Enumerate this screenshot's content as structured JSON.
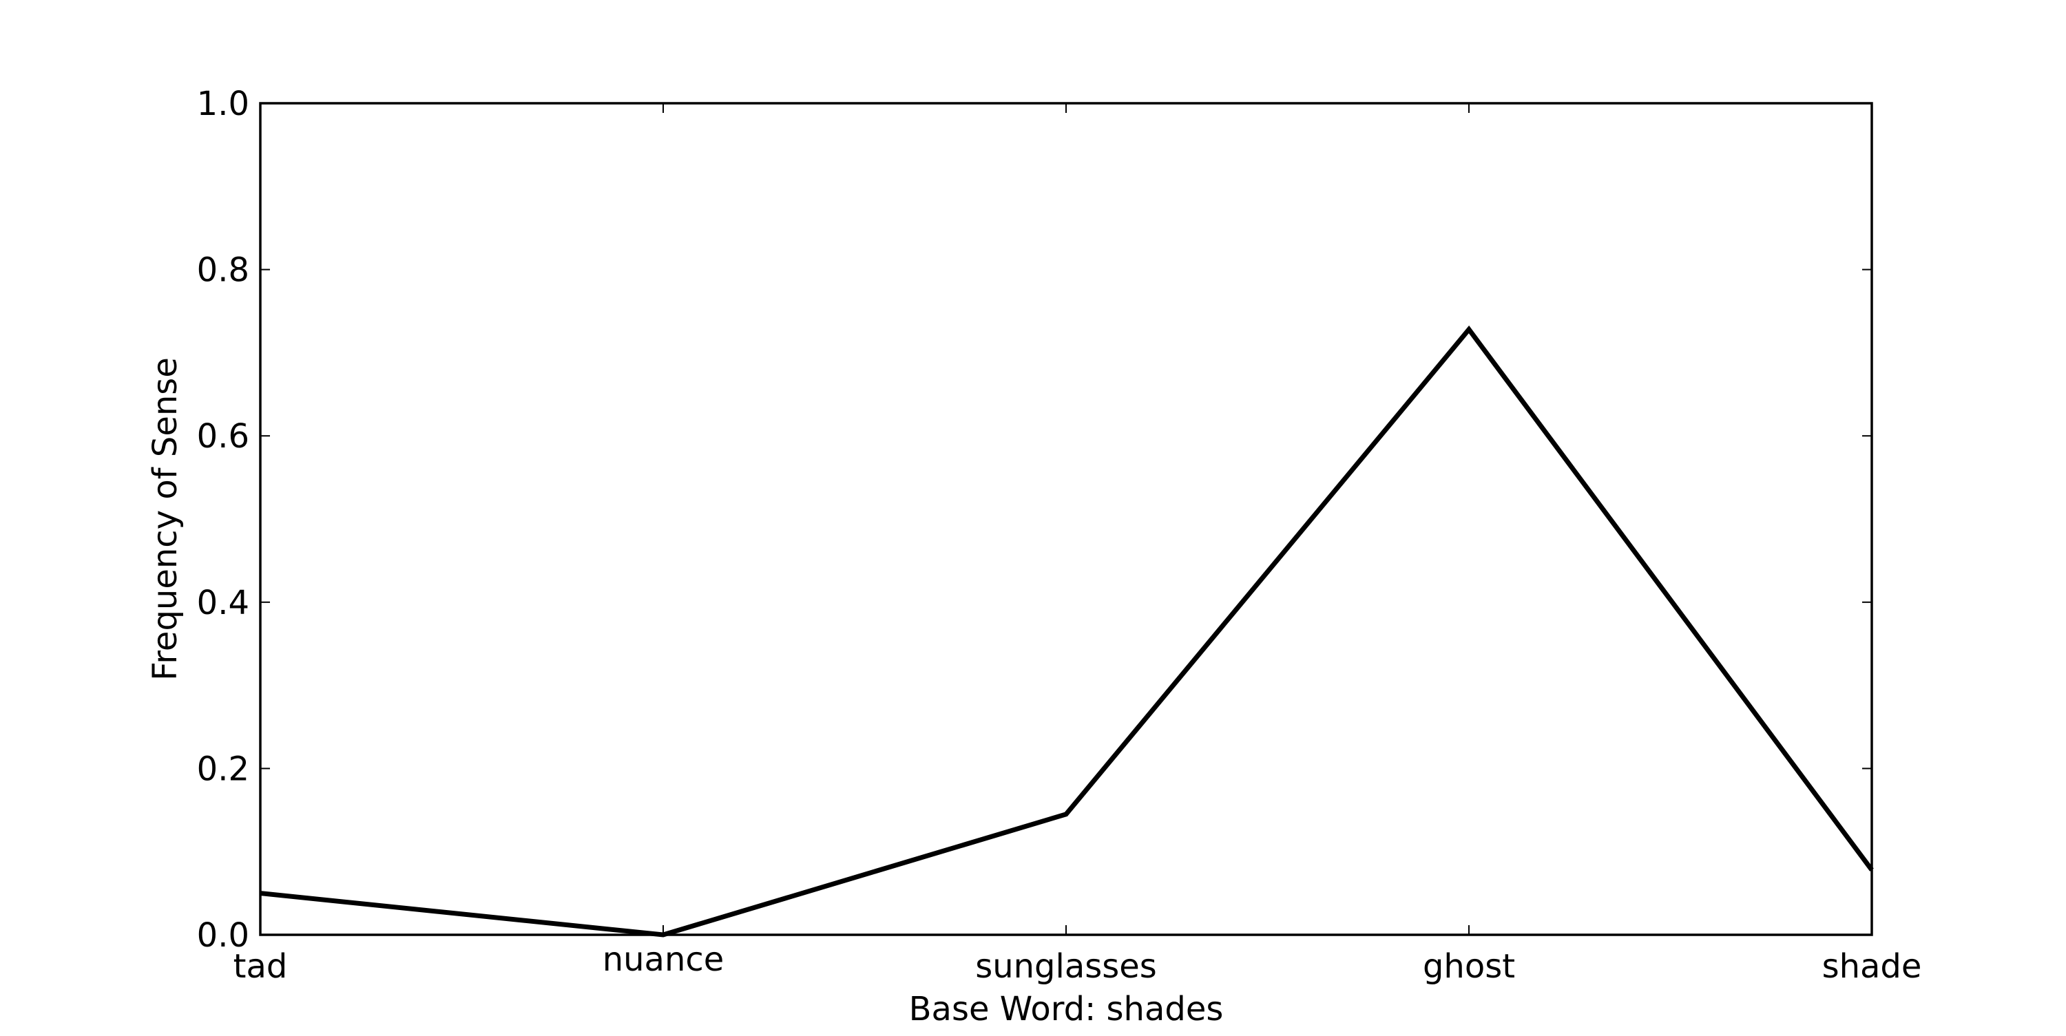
{
  "chart_data": {
    "type": "line",
    "title": "",
    "xlabel": "Base Word: shades",
    "ylabel": "Frequency of Sense",
    "categories": [
      "tad",
      "nuance",
      "sunglasses",
      "ghost",
      "shade"
    ],
    "series": [
      {
        "values": [
          0.05,
          0.0,
          0.145,
          0.728,
          0.078
        ]
      }
    ],
    "ylim": [
      0.0,
      1.0
    ],
    "yticks": [
      0.0,
      0.2,
      0.4,
      0.6,
      0.8,
      1.0
    ],
    "ytick_labels": [
      "0.0",
      "0.2",
      "0.4",
      "0.6",
      "0.8",
      "1.0"
    ],
    "grid": false,
    "line_color": "#000000"
  }
}
